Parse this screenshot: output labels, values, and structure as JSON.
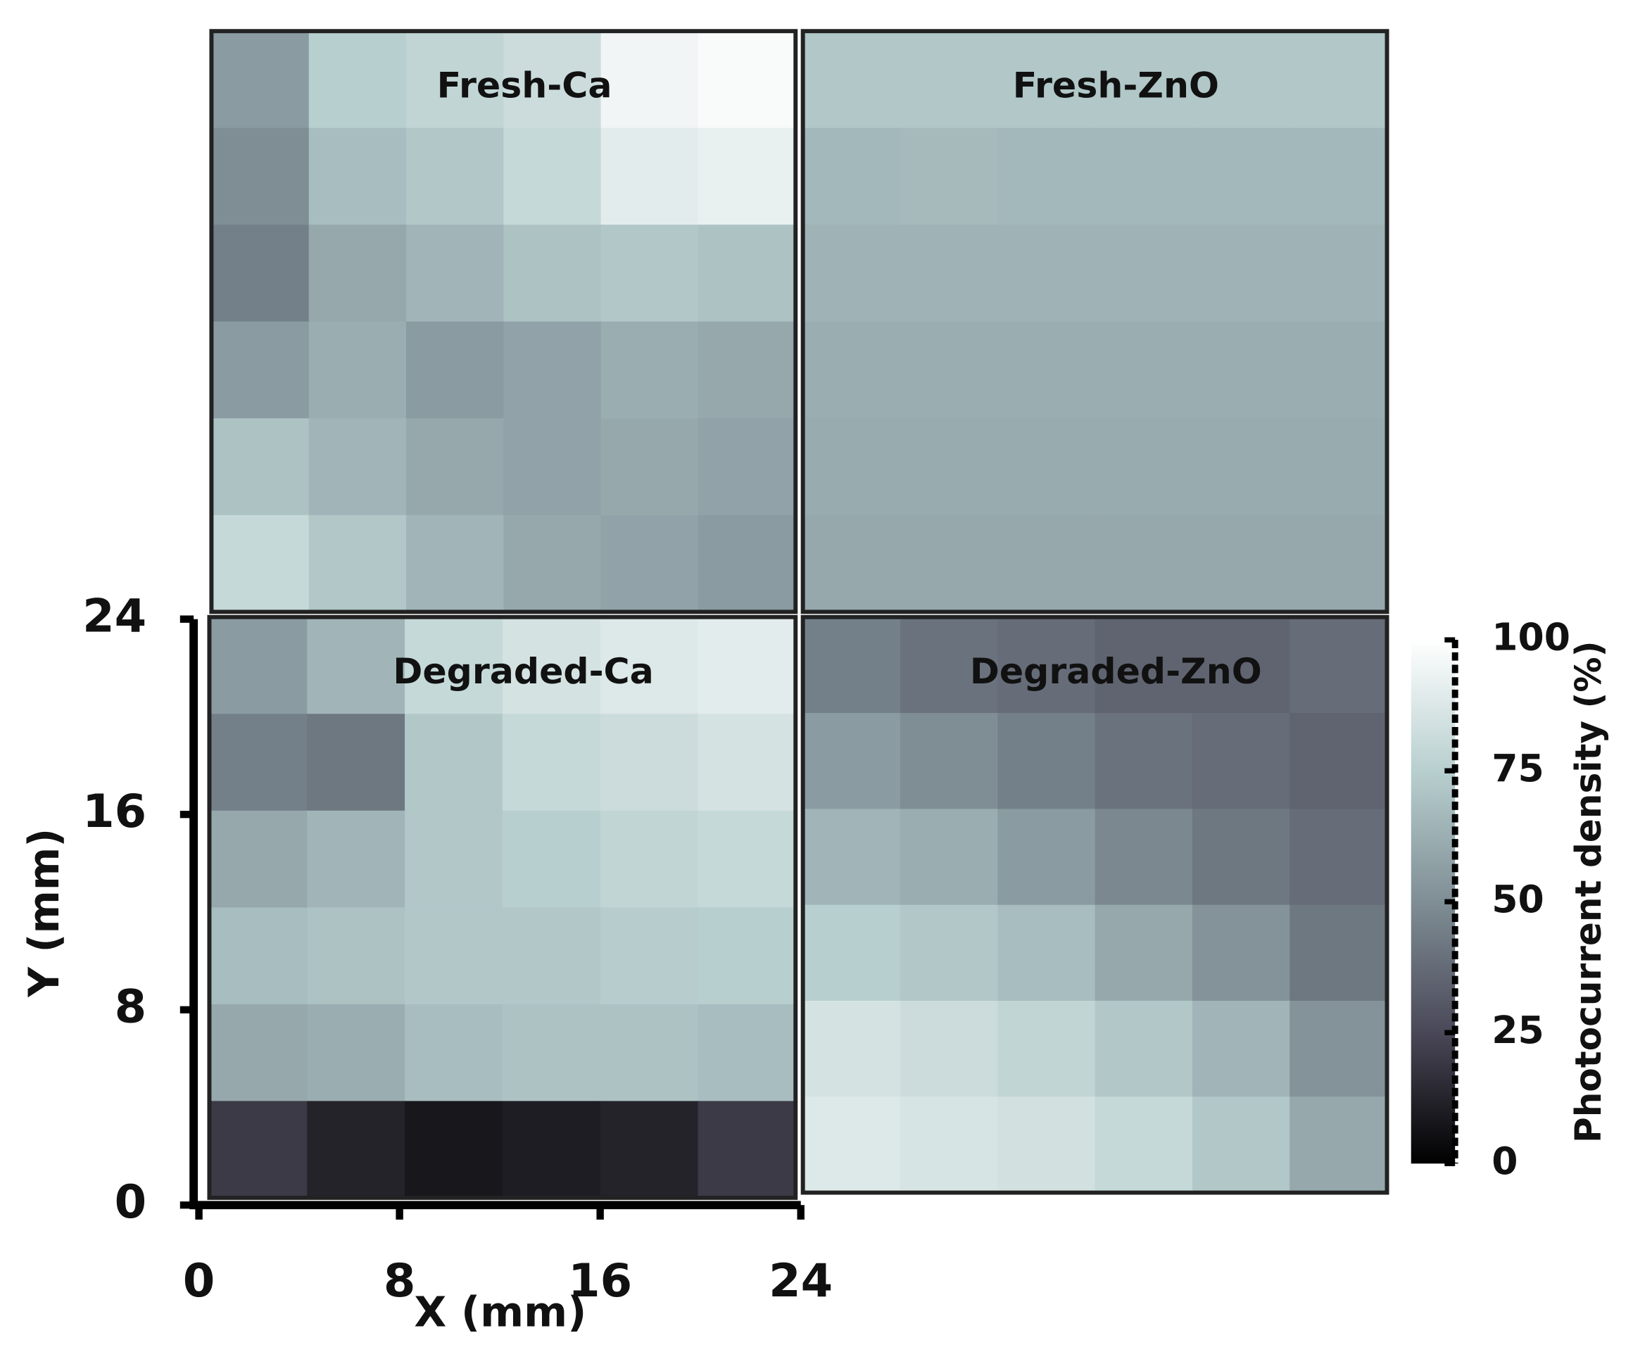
{
  "chart_data": [
    {
      "type": "heatmap",
      "title": "Fresh-Ca",
      "z": [
        [
          55,
          75,
          78,
          82,
          95,
          98
        ],
        [
          50,
          68,
          72,
          80,
          90,
          92
        ],
        [
          45,
          60,
          65,
          70,
          72,
          70
        ],
        [
          55,
          62,
          55,
          58,
          62,
          60
        ],
        [
          70,
          65,
          60,
          58,
          60,
          58
        ],
        [
          80,
          72,
          65,
          60,
          58,
          55
        ]
      ]
    },
    {
      "type": "heatmap",
      "title": "Fresh-ZnO",
      "z": [
        [
          72,
          72,
          72,
          72,
          72,
          72
        ],
        [
          66,
          67,
          66,
          66,
          66,
          66
        ],
        [
          64,
          64,
          64,
          64,
          64,
          64
        ],
        [
          62,
          62,
          62,
          62,
          62,
          62
        ],
        [
          61,
          61,
          61,
          61,
          61,
          61
        ],
        [
          60,
          60,
          60,
          60,
          60,
          60
        ]
      ]
    },
    {
      "type": "heatmap",
      "title": "Degraded-Ca",
      "z": [
        [
          55,
          65,
          80,
          85,
          88,
          90
        ],
        [
          45,
          42,
          72,
          80,
          82,
          85
        ],
        [
          60,
          65,
          72,
          75,
          78,
          80
        ],
        [
          68,
          70,
          72,
          72,
          74,
          75
        ],
        [
          60,
          62,
          68,
          70,
          70,
          68
        ],
        [
          20,
          12,
          8,
          10,
          12,
          20
        ]
      ],
      "xlabel": "X (mm)",
      "ylabel": "Y (mm)",
      "xlim": [
        0,
        24
      ],
      "ylim": [
        0,
        24
      ],
      "xticks": [
        0,
        8,
        16,
        24
      ],
      "yticks": [
        0,
        8,
        16,
        24
      ]
    },
    {
      "type": "heatmap",
      "title": "Degraded-ZnO",
      "z": [
        [
          45,
          40,
          38,
          35,
          35,
          38
        ],
        [
          55,
          50,
          45,
          40,
          38,
          35
        ],
        [
          65,
          62,
          55,
          48,
          42,
          38
        ],
        [
          75,
          72,
          68,
          60,
          52,
          42
        ],
        [
          85,
          82,
          78,
          72,
          65,
          52
        ],
        [
          88,
          86,
          84,
          80,
          72,
          60
        ]
      ],
      "zlabel": "Photocurrent density (%)",
      "zlim": [
        0,
        100
      ],
      "zticks": [
        0,
        25,
        50,
        75,
        100
      ],
      "colorscale": [
        "#000000",
        "#4a4858",
        "#7f8e95",
        "#b8cfcf",
        "#ffffff"
      ]
    }
  ]
}
